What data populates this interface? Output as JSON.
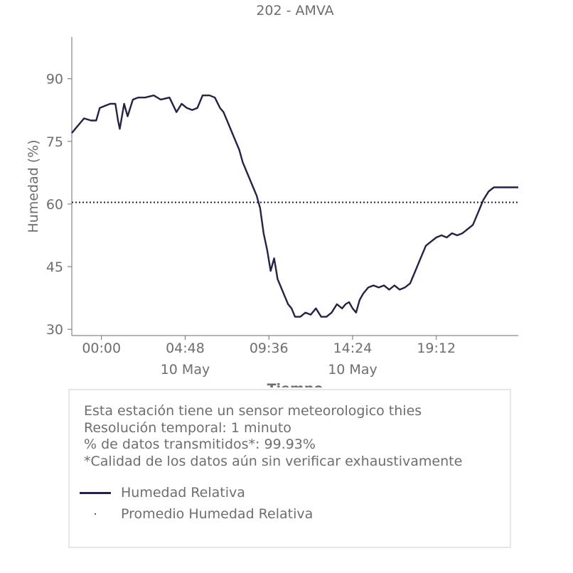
{
  "chart_data": {
    "type": "line",
    "title": "202 - AMVA",
    "xlabel": "Tiempo",
    "ylabel": "Humedad (%)",
    "ylim": [
      28.5,
      100
    ],
    "xlim_hours": [
      -1.7,
      23.9
    ],
    "x_ticks": [
      {
        "hour": 0.0,
        "label": "00:00",
        "sublabel": ""
      },
      {
        "hour": 4.8,
        "label": "04:48",
        "sublabel": "10 May"
      },
      {
        "hour": 9.6,
        "label": "09:36",
        "sublabel": ""
      },
      {
        "hour": 14.4,
        "label": "14:24",
        "sublabel": "10 May"
      },
      {
        "hour": 19.2,
        "label": "19:12",
        "sublabel": ""
      }
    ],
    "y_ticks": [
      30,
      45,
      60,
      75,
      90
    ],
    "grid": false,
    "series": [
      {
        "name": "Humedad Relativa",
        "color": "#23234a",
        "style": "solid",
        "x": [
          -1.7,
          -1.5,
          -1.2,
          -1.0,
          -0.6,
          -0.3,
          -0.1,
          0.2,
          0.5,
          0.8,
          0.95,
          1.05,
          1.3,
          1.5,
          1.8,
          2.1,
          2.5,
          3.0,
          3.4,
          3.9,
          4.3,
          4.6,
          4.9,
          5.2,
          5.5,
          5.8,
          6.2,
          6.5,
          6.8,
          7.0,
          7.3,
          7.6,
          7.9,
          8.1,
          8.3,
          8.5,
          8.7,
          8.9,
          9.1,
          9.3,
          9.5,
          9.7,
          9.9,
          10.1,
          10.3,
          10.5,
          10.7,
          10.9,
          11.1,
          11.4,
          11.7,
          12.0,
          12.3,
          12.6,
          12.9,
          13.2,
          13.5,
          13.8,
          14.0,
          14.2,
          14.4,
          14.6,
          14.8,
          15.0,
          15.3,
          15.6,
          15.9,
          16.2,
          16.5,
          16.8,
          17.1,
          17.4,
          17.7,
          18.0,
          18.3,
          18.6,
          18.9,
          19.2,
          19.5,
          19.8,
          20.1,
          20.4,
          20.7,
          21.0,
          21.3,
          21.6,
          21.9,
          22.2,
          22.5,
          22.8,
          23.0,
          23.2,
          23.4,
          23.6,
          23.9
        ],
        "y": [
          77,
          78,
          79.5,
          80.5,
          80,
          80,
          83,
          83.5,
          84,
          84,
          80,
          78,
          84,
          81,
          85,
          85.5,
          85.5,
          86,
          85,
          85.5,
          82,
          84,
          83,
          82.5,
          83,
          86,
          86,
          85.5,
          83,
          82,
          79,
          76,
          73,
          70,
          68,
          66,
          64,
          62,
          59,
          53,
          49,
          44,
          47,
          42,
          40,
          38,
          36,
          35,
          33,
          33,
          34,
          33.5,
          35,
          33,
          33,
          34,
          36,
          35,
          36,
          36.5,
          35,
          34,
          37,
          38.5,
          40,
          40.5,
          40,
          40.5,
          39.5,
          40.5,
          39.5,
          40,
          41,
          44,
          47,
          50,
          51,
          52,
          52.5,
          52,
          53,
          52.5,
          53,
          54,
          55,
          58,
          61,
          63,
          64,
          64,
          64,
          64,
          64,
          64,
          64
        ]
      },
      {
        "name": "Promedio Humedad Relativa",
        "color": "#23234a",
        "style": "dotted",
        "value": 60.4
      }
    ]
  },
  "info": {
    "lines": [
      "Esta estación tiene un sensor meteorologico thies",
      "Resolución temporal: 1 minuto",
      "% de datos transmitidos*: 99.93%",
      "*Calidad de los datos aún sin verificar exhaustivamente"
    ],
    "legend": [
      {
        "label": "Humedad Relativa"
      },
      {
        "label": "Promedio Humedad Relativa"
      }
    ]
  }
}
